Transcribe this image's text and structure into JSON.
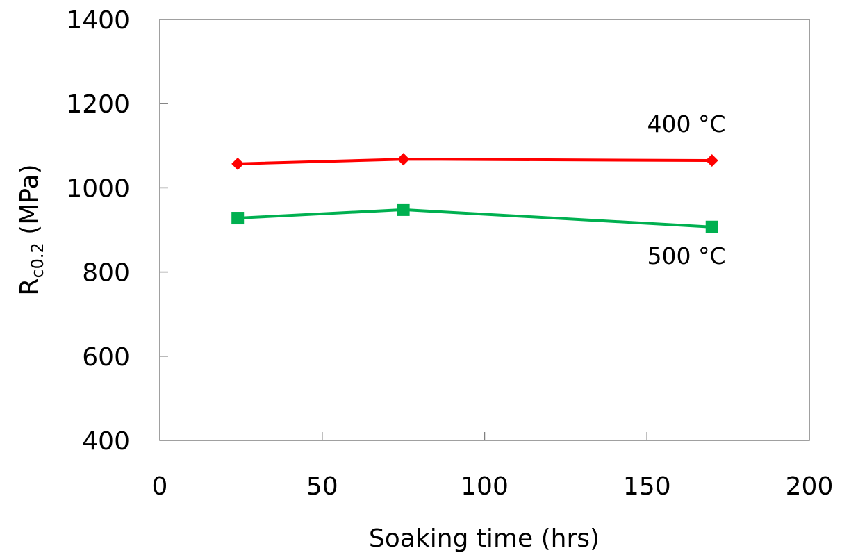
{
  "chart_data": {
    "type": "line",
    "xlabel": "Soaking time (hrs)",
    "ylabel": {
      "main": "R",
      "subscript": "c0.2",
      "unit": " (MPa)"
    },
    "xlim": [
      0,
      200
    ],
    "ylim": [
      400,
      1400
    ],
    "xticks": [
      0,
      50,
      100,
      150,
      200
    ],
    "yticks": [
      400,
      600,
      800,
      1000,
      1200,
      1400
    ],
    "grid": false,
    "series": [
      {
        "name": "400 °C",
        "color": "#ff0000",
        "marker": "diamond",
        "x": [
          24,
          75,
          170
        ],
        "y": [
          1057,
          1068,
          1065
        ]
      },
      {
        "name": "500 °C",
        "color": "#00b050",
        "marker": "square",
        "x": [
          24,
          75,
          170
        ],
        "y": [
          928,
          948,
          907
        ]
      }
    ]
  }
}
